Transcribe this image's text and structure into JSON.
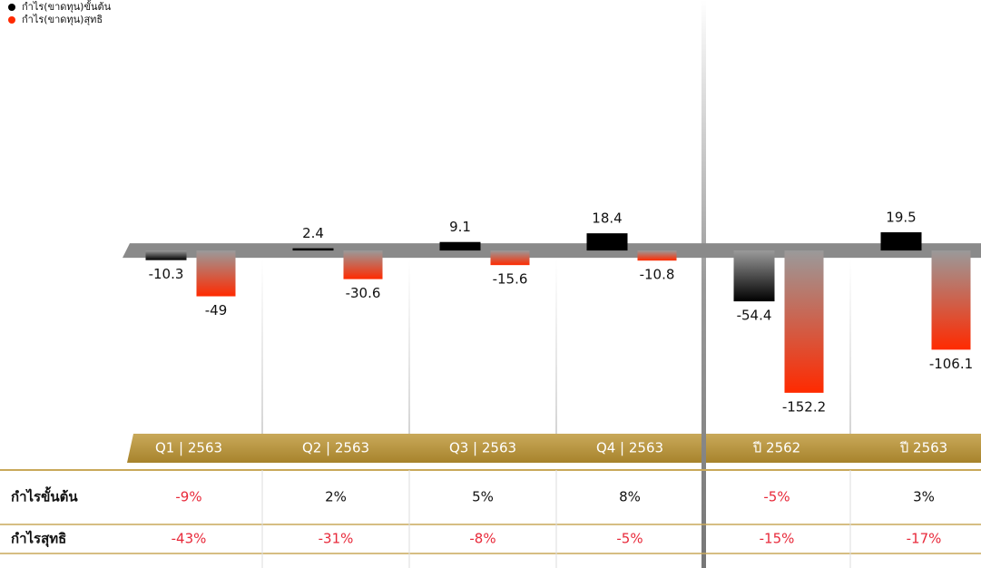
{
  "chart_data": {
    "type": "bar",
    "categories": [
      "Q1 | 2563",
      "Q2 | 2563",
      "Q3 | 2563",
      "Q4 | 2563",
      "ปี 2562",
      "ปี 2563"
    ],
    "series": [
      {
        "name": "กำไร(ขาดทุน)ขั้นต้น",
        "color": "#000000",
        "values": [
          -10.3,
          2.4,
          9.1,
          18.4,
          -54.4,
          19.5
        ]
      },
      {
        "name": "กำไร(ขาดทุน)สุทธิ",
        "color": "#ff2a00",
        "values": [
          -49,
          -30.6,
          -15.6,
          -10.8,
          -152.2,
          -106.1
        ]
      }
    ],
    "ylim": [
      -196,
      268
    ]
  },
  "table": {
    "rows": [
      {
        "label": "กำไรขั้นต้น",
        "values": [
          "-9%",
          "2%",
          "5%",
          "8%",
          "-5%",
          "3%"
        ]
      },
      {
        "label": "กำไรสุทธิ",
        "values": [
          "-43%",
          "-31%",
          "-8%",
          "-5%",
          "-15%",
          "-17%"
        ]
      }
    ]
  }
}
